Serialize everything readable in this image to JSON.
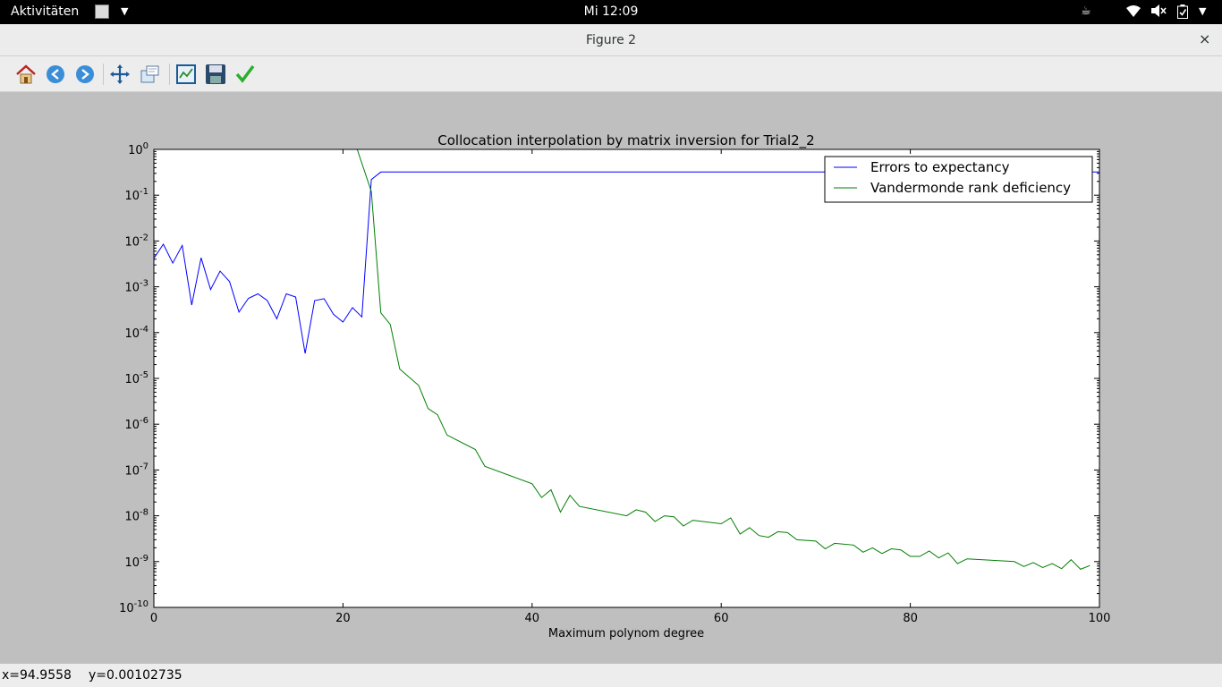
{
  "topbar": {
    "activities_label": "Aktivitäten",
    "clock": "Mi 12:09",
    "icons": [
      "app-menu-icon",
      "coffee-icon",
      "wifi-icon",
      "volume-muted-icon",
      "battery-icon",
      "chevron-down-icon"
    ]
  },
  "window": {
    "title": "Figure 2",
    "close_glyph": "×"
  },
  "toolbar": {
    "buttons": [
      "home-icon",
      "back-icon",
      "forward-icon",
      "pan-icon",
      "zoom-icon",
      "subplots-icon",
      "save-icon",
      "edit-check-icon"
    ]
  },
  "status": {
    "x_readout": "x=94.9558",
    "y_readout": "y=0.00102735"
  },
  "colors": {
    "series_blue": "#0000ff",
    "series_green": "#007f00",
    "figure_bg": "#bfbfbf"
  },
  "chart_data": {
    "type": "line",
    "title": "Collocation interpolation by matrix inversion for Trial2_2",
    "xlabel": "Maximum polynom degree",
    "ylabel": "",
    "xlim": [
      0,
      100
    ],
    "ylim_log10": [
      -10,
      0
    ],
    "yscale": "log",
    "x_ticks": [
      "0",
      "20",
      "40",
      "60",
      "80",
      "100"
    ],
    "y_tick_exponents": [
      "0",
      "-1",
      "-2",
      "-3",
      "-4",
      "-5",
      "-6",
      "-7",
      "-8",
      "-9",
      "-10"
    ],
    "legend_position": "upper right",
    "series": [
      {
        "name": "Errors to expectancy",
        "color": "#0000ff",
        "x": [
          0,
          1,
          2,
          3,
          4,
          5,
          6,
          7,
          8,
          9,
          10,
          11,
          12,
          13,
          14,
          15,
          16,
          17,
          18,
          19,
          20,
          21,
          22,
          23,
          24,
          25,
          30,
          40,
          50,
          60,
          70,
          80,
          90,
          100
        ],
        "y": [
          0.0042,
          0.0085,
          0.0033,
          0.008,
          0.0004,
          0.0043,
          0.00087,
          0.0022,
          0.0013,
          0.00028,
          0.00056,
          0.0007,
          0.0005,
          0.0002,
          0.0007,
          0.0006,
          3.5e-05,
          0.0005,
          0.00055,
          0.00025,
          0.00017,
          0.00035,
          0.00022,
          0.22,
          0.32,
          0.32,
          0.32,
          0.32,
          0.32,
          0.32,
          0.32,
          0.32,
          0.32,
          0.32
        ]
      },
      {
        "name": "Vandermonde rank deficiency",
        "color": "#007f00",
        "x": [
          21.5,
          23,
          24,
          25,
          26,
          28,
          29,
          30,
          31,
          34,
          35,
          40,
          41,
          42,
          43,
          44,
          45,
          50,
          51,
          52,
          53,
          54,
          55,
          56,
          57,
          60,
          61,
          62,
          63,
          64,
          65,
          66,
          67,
          68,
          70,
          71,
          72,
          74,
          75,
          76,
          77,
          78,
          79,
          80,
          81,
          82,
          83,
          84,
          85,
          86,
          91,
          92,
          93,
          94,
          95,
          96,
          97,
          98,
          99
        ],
        "y": [
          1.0,
          0.12,
          0.00027,
          0.00015,
          1.6e-05,
          7e-06,
          2.2e-06,
          1.6e-06,
          5.8e-07,
          2.8e-07,
          1.2e-07,
          5e-08,
          2.5e-08,
          3.7e-08,
          1.2e-08,
          2.8e-08,
          1.6e-08,
          1e-08,
          1.35e-08,
          1.2e-08,
          7.5e-09,
          1e-08,
          9.5e-09,
          6e-09,
          8e-09,
          6.7e-09,
          9e-09,
          4e-09,
          5.5e-09,
          3.7e-09,
          3.4e-09,
          4.5e-09,
          4.3e-09,
          3e-09,
          2.8e-09,
          1.9e-09,
          2.5e-09,
          2.3e-09,
          1.6e-09,
          2e-09,
          1.5e-09,
          1.9e-09,
          1.8e-09,
          1.3e-09,
          1.3e-09,
          1.7e-09,
          1.2e-09,
          1.55e-09,
          9e-10,
          1.15e-09,
          1e-09,
          7.8e-10,
          9.5e-10,
          7.4e-10,
          9e-10,
          7e-10,
          1.1e-09,
          6.8e-10,
          8.2e-10
        ]
      }
    ]
  }
}
